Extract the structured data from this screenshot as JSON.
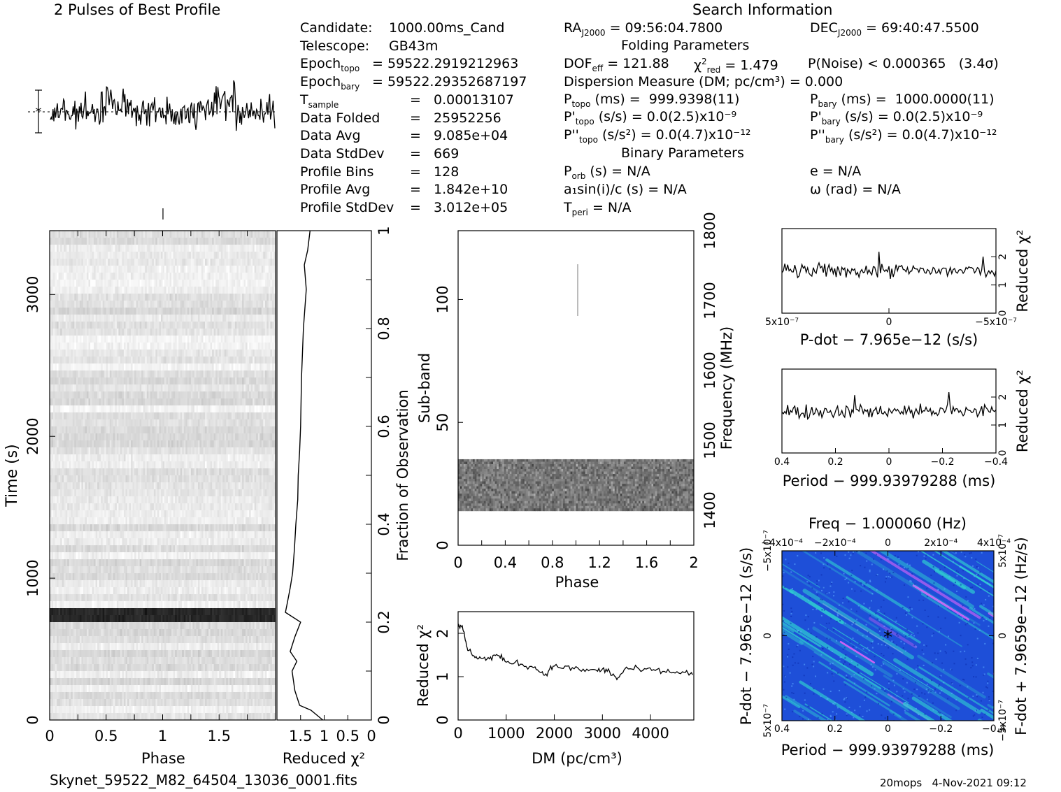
{
  "titles": {
    "profile": "2 Pulses of Best Profile",
    "search": "Search Information",
    "folding": "Folding Parameters",
    "binary": "Binary Parameters"
  },
  "filename": "Skynet_59522_M82_64504_13036_0001.fits",
  "footer": "20mops   4-Nov-2021 09:12",
  "info_left": [
    {
      "label": "Candidate:",
      "value": "1000.00ms_Cand"
    },
    {
      "label": "Telescope:",
      "value": "GB43m"
    },
    {
      "label": "Epoch",
      "sub": "topo",
      "value": "= 59522.2919212963"
    },
    {
      "label": "Epoch",
      "sub": "bary",
      "value": "= 59522.29352687197"
    },
    {
      "label": "T",
      "sub": "sample",
      "value": "=   0.00013107"
    },
    {
      "label": "Data Folded",
      "value": "=   25952256"
    },
    {
      "label": "Data Avg",
      "value": "=   9.085e+04"
    },
    {
      "label": "Data StdDev",
      "value": "=   669"
    },
    {
      "label": "Profile Bins",
      "value": "=   128"
    },
    {
      "label": "Profile Avg",
      "value": "=   1.842e+10"
    },
    {
      "label": "Profile StdDev",
      "value": "=   3.012e+05"
    }
  ],
  "info_mid": {
    "ra": "= 09:56:04.7800",
    "dec": "= 69:40:47.5500",
    "dof": "= 121.88",
    "chi2red": "= 1.479",
    "pnoise": "P(Noise) < 0.000365   (3.4σ)",
    "dm": "Dispersion Measure (DM; pc/cm³) = 0.000",
    "ptopo": "(ms) =  999.9398(11)",
    "pbary": "(ms) =  1000.0000(11)",
    "pdtopo": "(s/s) = 0.0(2.5)x10⁻⁹",
    "pdbary": "(s/s) = 0.0(2.5)x10⁻⁹",
    "pddtopo": "(s/s²) = 0.0(4.7)x10⁻¹²",
    "pddbary": "(s/s²) = 0.0(4.7)x10⁻¹²",
    "porb": "(s) = N/A",
    "asini": "a₁sin(i)/c (s) = N/A",
    "tperi": "= N/A",
    "ecc": "e = N/A",
    "omega": "ω (rad) = N/A"
  },
  "axes": {
    "phase": "Phase",
    "time": "Time (s)",
    "redchi2": "Reduced χ²",
    "fraction": "Fraction of Observation",
    "subband": "Sub-band",
    "frequency": "Frequency (MHz)",
    "dm_label": "DM (pc/cm³)",
    "pdot_label": "P-dot − 7.965e−12 (s/s)",
    "period_label": "Period − 999.93979288 (ms)",
    "freq_label": "Freq − 1.000060 (Hz)",
    "pdot_axis": "P-dot − 7.965e−12 (s/s)",
    "fdot_axis": "F-dot + 7.9659e−12 (Hz/s)"
  },
  "chart_data": [
    {
      "type": "line",
      "name": "profile",
      "title": "2 Pulses of Best Profile",
      "x_range": [
        0,
        2
      ],
      "peak_phases": [
        0.55,
        1.55
      ]
    },
    {
      "type": "heatmap",
      "name": "time-phase",
      "xlabel": "Phase",
      "ylabel": "Time (s)",
      "xlim": [
        0,
        2
      ],
      "ylim": [
        0,
        3450
      ],
      "xticks": [
        "0",
        "0.5",
        "1",
        "1.5"
      ],
      "yticks": [
        "0",
        "1000",
        "2000",
        "3000"
      ],
      "bright_band_time": [
        700,
        760
      ]
    },
    {
      "type": "line",
      "name": "chi2-vs-fraction",
      "xlabel": "Reduced χ²",
      "xticks": [
        "1.5",
        "1",
        "0.5",
        "0"
      ],
      "ylabel": "Fraction of Observation",
      "yticks": [
        "0",
        "0.2",
        "0.4",
        "0.6",
        "0.8",
        "1"
      ],
      "points": [
        [
          1.03,
          0.0
        ],
        [
          1.28,
          0.02
        ],
        [
          1.52,
          0.03
        ],
        [
          1.62,
          0.06
        ],
        [
          1.68,
          0.1
        ],
        [
          1.58,
          0.12
        ],
        [
          1.72,
          0.14
        ],
        [
          1.62,
          0.17
        ],
        [
          1.5,
          0.2
        ],
        [
          1.82,
          0.22
        ],
        [
          1.78,
          0.24
        ],
        [
          1.72,
          0.27
        ],
        [
          1.67,
          0.3
        ],
        [
          1.63,
          0.35
        ],
        [
          1.6,
          0.4
        ],
        [
          1.56,
          0.45
        ],
        [
          1.55,
          0.5
        ],
        [
          1.52,
          0.55
        ],
        [
          1.5,
          0.6
        ],
        [
          1.48,
          0.7
        ],
        [
          1.44,
          0.8
        ],
        [
          1.38,
          0.88
        ],
        [
          1.42,
          0.93
        ],
        [
          1.35,
          0.96
        ],
        [
          1.3,
          1.0
        ]
      ]
    },
    {
      "type": "heatmap",
      "name": "subband-phase",
      "xlabel": "Phase",
      "ylabel": "Sub-band",
      "y2label": "Frequency (MHz)",
      "xlim": [
        0,
        2
      ],
      "ylim": [
        0,
        128
      ],
      "xticks": [
        "0",
        "0.4",
        "0.8",
        "1.2",
        "1.6",
        "2"
      ],
      "yticks": [
        "0",
        "50",
        "100"
      ],
      "y2ticks": [
        "1400",
        "1500",
        "1600",
        "1700",
        "1800"
      ],
      "band_subbands": [
        14,
        35
      ]
    },
    {
      "type": "line",
      "name": "dm-chi2",
      "xlabel": "DM (pc/cm³)",
      "ylabel": "Reduced χ²",
      "xlim": [
        0,
        4900
      ],
      "ylim": [
        0,
        2.5
      ],
      "xticks": [
        "0",
        "1000",
        "2000",
        "3000",
        "4000"
      ],
      "yticks": [
        "0",
        "1",
        "2"
      ],
      "points": [
        [
          0,
          2.2
        ],
        [
          100,
          2.1
        ],
        [
          200,
          1.6
        ],
        [
          400,
          1.45
        ],
        [
          600,
          1.4
        ],
        [
          800,
          1.5
        ],
        [
          1000,
          1.35
        ],
        [
          1300,
          1.3
        ],
        [
          1600,
          1.2
        ],
        [
          1800,
          1.05
        ],
        [
          2000,
          1.25
        ],
        [
          2300,
          1.2
        ],
        [
          2600,
          1.15
        ],
        [
          2900,
          1.15
        ],
        [
          3100,
          1.15
        ],
        [
          3300,
          0.95
        ],
        [
          3500,
          1.2
        ],
        [
          3800,
          1.15
        ],
        [
          4100,
          1.15
        ],
        [
          4400,
          1.1
        ],
        [
          4700,
          1.1
        ],
        [
          4900,
          1.05
        ]
      ]
    },
    {
      "type": "line",
      "name": "pdot-chi2",
      "xlabel": "P-dot − 7.965e−12 (s/s)",
      "ylabel": "Reduced χ²",
      "xticks": [
        "5x10⁻⁷",
        "0",
        "−5x10⁻⁷"
      ],
      "yticks": [
        "0",
        "1",
        "2"
      ],
      "mean": 1.5
    },
    {
      "type": "line",
      "name": "period-chi2",
      "xlabel": "Period − 999.93979288 (ms)",
      "ylabel": "Reduced χ²",
      "xticks": [
        "0.4",
        "0.2",
        "0",
        "−0.2",
        "−0.4"
      ],
      "yticks": [
        "0",
        "1",
        "2"
      ],
      "mean": 1.5
    },
    {
      "type": "heatmap",
      "name": "p-pdot",
      "xlabel": "Period − 999.93979288 (ms)",
      "ylabel": "P-dot − 7.965e−12 (s/s)",
      "top_label": "Freq − 1.000060 (Hz)",
      "right_label": "F-dot + 7.9659e−12 (Hz/s)",
      "xticks": [
        "0.4",
        "0.2",
        "0",
        "−0.2",
        "−0.4"
      ],
      "top_ticks": [
        "−4x10⁻⁴",
        "−2x10⁻⁴",
        "0",
        "2x10⁻⁴",
        "4x10⁻⁴"
      ],
      "yticks": [
        "5x10⁻⁷",
        "0",
        "−5x10⁻⁷"
      ],
      "y2ticks": [
        "−5x10⁻⁷",
        "0",
        "5x10⁻⁷"
      ],
      "best": [
        0,
        0
      ]
    }
  ],
  "colors": {
    "ink": "#000000",
    "bg": "#ffffff",
    "ppdot_base": "#1e4fd8",
    "ppdot_streak": "#2fd0d0",
    "ppdot_hot": "#ff66ff"
  }
}
